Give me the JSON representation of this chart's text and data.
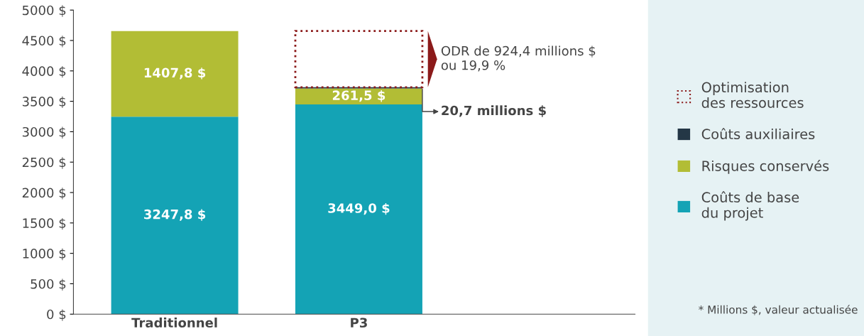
{
  "chart_data": {
    "type": "bar",
    "stacked": true,
    "categories": [
      "Traditionnel",
      "P3"
    ],
    "series": [
      {
        "name": "Coûts de base du projet",
        "color": "#14a3b5",
        "values": [
          3247.8,
          3449.0
        ],
        "value_labels": [
          "3247,8 $",
          "3449,0 $"
        ]
      },
      {
        "name": "Risques conservés",
        "color": "#b2bd35",
        "values": [
          1407.8,
          261.5
        ],
        "value_labels": [
          "1407,8 $",
          "261,5 $"
        ]
      },
      {
        "name": "Coûts auxiliaires",
        "color": "#243746",
        "values": [
          0,
          20.7
        ]
      },
      {
        "name": "Optimisation des ressources",
        "color": "#8b1a1a",
        "line_style": "dotted",
        "values": [
          null,
          924.4
        ]
      }
    ],
    "ylim": [
      0,
      5000
    ],
    "yticks": [
      {
        "value": 0,
        "label": "0 $"
      },
      {
        "value": 500,
        "label": "500 $"
      },
      {
        "value": 1000,
        "label": "1000 $"
      },
      {
        "value": 1500,
        "label": "1500 $"
      },
      {
        "value": 2000,
        "label": "2000 $"
      },
      {
        "value": 2500,
        "label": "2500 $"
      },
      {
        "value": 3000,
        "label": "3000 $"
      },
      {
        "value": 3500,
        "label": "3500 $"
      },
      {
        "value": 4000,
        "label": "4000 $"
      },
      {
        "value": 4500,
        "label": "4500 $"
      },
      {
        "value": 5000,
        "label": "5000 $"
      }
    ],
    "grid": false,
    "legend": "right",
    "annotations": [
      "ODR de 924,4 millions $\nou 19,9 %",
      "20,7 millions $",
      "* Millions $, valeur actualisée"
    ]
  }
}
